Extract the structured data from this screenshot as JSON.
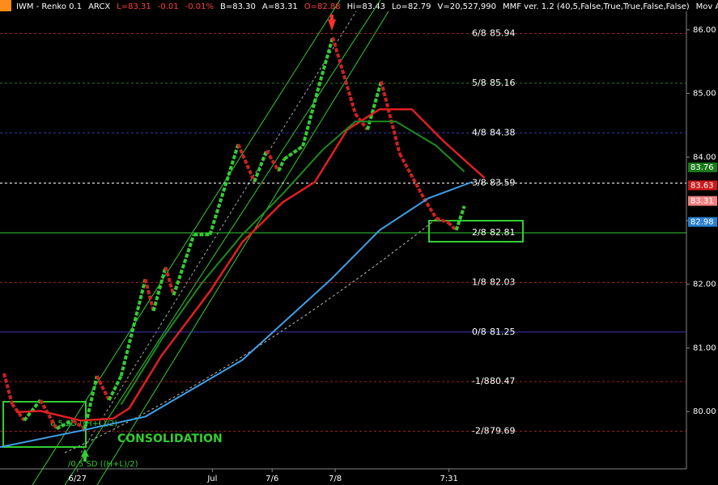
{
  "header": {
    "items": [
      {
        "text": "IWM - Renko 0.1",
        "color": "#ffffff"
      },
      {
        "text": "ARCX",
        "color": "#ffffff"
      },
      {
        "text": "L=83.31",
        "color": "#ff4040"
      },
      {
        "text": "-0.01",
        "color": "#ff4040"
      },
      {
        "text": "-0.01%",
        "color": "#ff4040"
      },
      {
        "text": "B=83.30",
        "color": "#ffffff"
      },
      {
        "text": "A=83.31",
        "color": "#ffffff"
      },
      {
        "text": "O=82.88",
        "color": "#ff4040"
      },
      {
        "text": "Hi=83.43",
        "color": "#ffffff"
      },
      {
        "text": "Lo=82.79",
        "color": "#ffffff"
      },
      {
        "text": "V=20,527,990",
        "color": "#ffffff"
      },
      {
        "text": "MMF ver. 1.2 (40,5,False,True,True,False,False)",
        "color": "#ffffff"
      },
      {
        "text": "Mov A",
        "color": "#ffffff"
      }
    ]
  },
  "chart_data": {
    "type": "renko",
    "xlim": [
      0,
      170
    ],
    "xticks": [
      {
        "value": 19.2,
        "label": "6/27"
      },
      {
        "value": 52.6,
        "label": "Jul"
      },
      {
        "value": 67.4,
        "label": "7/6"
      },
      {
        "value": 83,
        "label": "7/8"
      },
      {
        "value": 111.2,
        "label": "7:31"
      }
    ],
    "ylim": [
      79.1,
      86.29
    ],
    "yticks": [
      {
        "value": 80,
        "label": "80.00"
      },
      {
        "value": 81,
        "label": "81.00"
      },
      {
        "value": 82,
        "label": "82.00"
      },
      {
        "value": 83,
        "label": "83.00"
      },
      {
        "value": 84,
        "label": "84.00"
      },
      {
        "value": 85,
        "label": "85.00"
      },
      {
        "value": 86,
        "label": "86.00"
      }
    ],
    "series": [
      {
        "name": "price",
        "up_color": "#33cc33",
        "down_color": "#cc2222",
        "x": [
          1,
          3,
          6,
          10,
          14,
          18,
          21,
          24,
          27,
          30,
          36,
          38,
          41,
          43,
          48,
          52,
          59,
          63,
          66,
          69,
          70.4,
          75,
          79,
          82.4,
          88,
          91,
          94.4,
          99,
          105,
          108,
          111,
          113,
          115
        ],
        "values": [
          80.6,
          80.12,
          79.86,
          80.18,
          79.73,
          79.86,
          79.73,
          80.56,
          80.18,
          80.56,
          82.08,
          81.58,
          82.27,
          81.83,
          82.78,
          82.78,
          84.2,
          83.61,
          84.1,
          83.78,
          83.97,
          84.17,
          85.12,
          85.88,
          84.68,
          84.43,
          85.19,
          84.05,
          83.35,
          83.04,
          82.97,
          82.85,
          83.23
        ]
      },
      {
        "name": "red-ma",
        "color": "#e02020",
        "width": 2.5,
        "x": [
          4,
          10,
          20,
          28,
          32,
          40,
          52,
          60,
          70,
          78,
          86,
          94,
          102,
          110,
          120
        ],
        "values": [
          79.99,
          80.01,
          79.86,
          79.89,
          80.05,
          80.88,
          81.89,
          82.66,
          83.29,
          83.61,
          84.43,
          84.75,
          84.75,
          84.24,
          83.67
        ]
      },
      {
        "name": "green-ma",
        "color": "#1f8a1f",
        "width": 2,
        "x": [
          30,
          40,
          50,
          60,
          70,
          80,
          88,
          98,
          108,
          115
        ],
        "values": [
          80.11,
          81.13,
          82.02,
          82.78,
          83.42,
          84.12,
          84.56,
          84.56,
          84.18,
          83.77
        ]
      },
      {
        "name": "blue-ma",
        "color": "#3ea0e8",
        "width": 2,
        "x": [
          0,
          20,
          36,
          60,
          82,
          94,
          106,
          117
        ],
        "values": [
          79.44,
          79.7,
          79.92,
          80.81,
          82.08,
          82.85,
          83.35,
          83.61
        ]
      }
    ],
    "murrey": [
      {
        "label": "6/8",
        "value": 85.94,
        "color": "#a02020",
        "dash": true
      },
      {
        "label": "5/8",
        "value": 85.16,
        "color": "#2a7a2a",
        "dash": true
      },
      {
        "label": "4/8",
        "value": 84.38,
        "color": "#3a3ab0",
        "dash": true
      },
      {
        "label": "3/8",
        "value": 83.59,
        "color": "#ffffff",
        "dash": true
      },
      {
        "label": "2/8",
        "value": 82.81,
        "color": "#33cc33",
        "dash": false
      },
      {
        "label": "1/8",
        "value": 82.03,
        "color": "#a02020",
        "dash": true
      },
      {
        "label": "0/8",
        "value": 81.25,
        "color": "#3a3ab0",
        "dash": false
      },
      {
        "label": "-1/8",
        "value": 80.47,
        "color": "#a02020",
        "dash": true
      },
      {
        "label": "-2/8",
        "value": 79.69,
        "color": "#a02020",
        "dash": true
      }
    ],
    "last_values": [
      {
        "value": 83.76,
        "color": "#1a7a1a"
      },
      {
        "value": 83.63,
        "color": "#cc1a1a"
      },
      {
        "value": 83.31,
        "color": "#f08080"
      },
      {
        "value": 82.98,
        "color": "#2a80d0"
      }
    ],
    "annotations": [
      "CONSOLIDATION",
      "0.5 SD ((H+L)/2)",
      "/0.5 SD ((H+L)/2)"
    ]
  }
}
